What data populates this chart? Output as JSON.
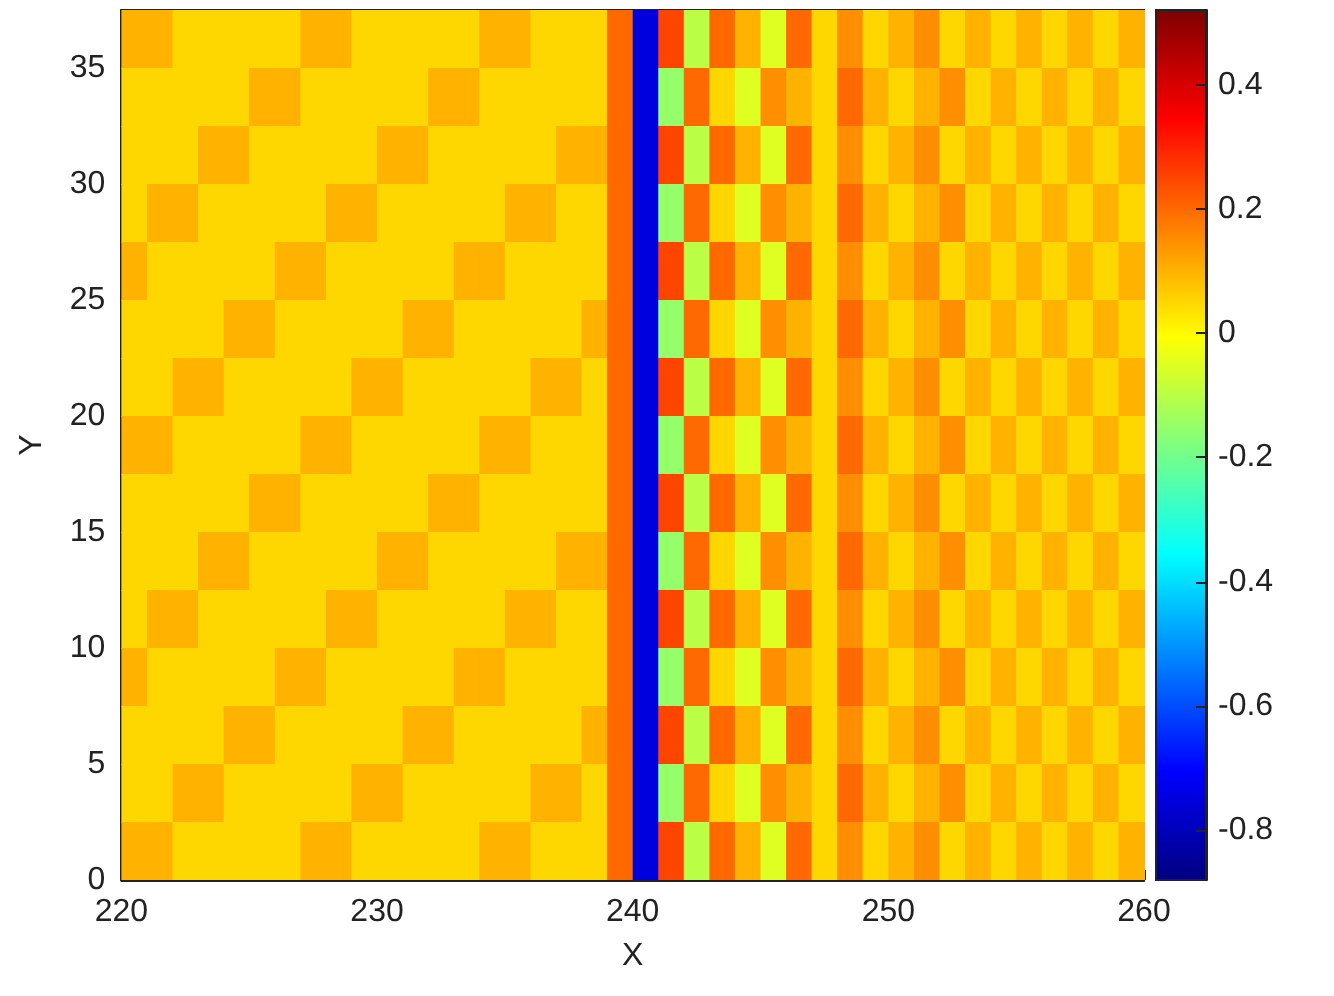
{
  "chart_data": {
    "type": "heatmap",
    "xlabel": "X",
    "ylabel": "Y",
    "x": [
      220.5,
      221.5,
      222.5,
      223.5,
      224.5,
      225.5,
      226.5,
      227.5,
      228.5,
      229.5,
      230.5,
      231.5,
      232.5,
      233.5,
      234.5,
      235.5,
      236.5,
      237.5,
      238.5,
      239.5,
      240.5,
      241.5,
      242.5,
      243.5,
      244.5,
      245.5,
      246.5,
      247.5,
      248.5,
      249.5,
      250.5,
      251.5,
      252.5,
      253.5,
      254.5,
      255.5,
      256.5,
      257.5,
      258.5,
      259.5
    ],
    "y": [
      36.25,
      33.75,
      31.25,
      28.75,
      26.25,
      23.75,
      21.25,
      18.75,
      16.25,
      13.75,
      11.25,
      8.75,
      6.25,
      3.75,
      1.25
    ],
    "cells": [
      [
        0.1,
        0.1,
        0.05,
        0.05,
        0.05,
        0.05,
        0.05,
        0.1,
        0.1,
        0.05,
        0.05,
        0.05,
        0.05,
        0.05,
        0.1,
        0.1,
        0.05,
        0.05,
        0.05,
        0.2,
        -0.75,
        0.25,
        -0.1,
        0.2,
        0.1,
        -0.05,
        0.2,
        0.05,
        0.15,
        0.05,
        0.1,
        0.15,
        0.05,
        0.1,
        0.05,
        0.1,
        0.05,
        0.1,
        0.05,
        0.1
      ],
      [
        0.05,
        0.05,
        0.05,
        0.05,
        0.05,
        0.1,
        0.1,
        0.05,
        0.05,
        0.05,
        0.05,
        0.05,
        0.1,
        0.1,
        0.05,
        0.05,
        0.05,
        0.05,
        0.05,
        0.2,
        -0.75,
        -0.15,
        0.2,
        0.05,
        -0.05,
        0.15,
        0.1,
        0.05,
        0.2,
        0.1,
        0.05,
        0.1,
        0.15,
        0.05,
        0.1,
        0.05,
        0.1,
        0.05,
        0.1,
        0.05
      ],
      [
        0.05,
        0.05,
        0.05,
        0.1,
        0.1,
        0.05,
        0.05,
        0.05,
        0.05,
        0.05,
        0.1,
        0.1,
        0.05,
        0.05,
        0.05,
        0.05,
        0.05,
        0.1,
        0.1,
        0.2,
        -0.75,
        0.25,
        -0.1,
        0.2,
        0.1,
        -0.05,
        0.2,
        0.05,
        0.15,
        0.05,
        0.1,
        0.15,
        0.05,
        0.1,
        0.05,
        0.1,
        0.05,
        0.1,
        0.05,
        0.1
      ],
      [
        0.05,
        0.1,
        0.1,
        0.05,
        0.05,
        0.05,
        0.05,
        0.05,
        0.1,
        0.1,
        0.05,
        0.05,
        0.05,
        0.05,
        0.05,
        0.1,
        0.1,
        0.05,
        0.05,
        0.2,
        -0.75,
        -0.15,
        0.2,
        0.05,
        -0.05,
        0.15,
        0.1,
        0.05,
        0.2,
        0.1,
        0.05,
        0.1,
        0.15,
        0.05,
        0.1,
        0.05,
        0.1,
        0.05,
        0.1,
        0.05
      ],
      [
        0.1,
        0.05,
        0.05,
        0.05,
        0.05,
        0.05,
        0.1,
        0.1,
        0.05,
        0.05,
        0.05,
        0.05,
        0.05,
        0.1,
        0.1,
        0.05,
        0.05,
        0.05,
        0.05,
        0.2,
        -0.75,
        0.25,
        -0.1,
        0.2,
        0.1,
        -0.05,
        0.2,
        0.05,
        0.15,
        0.05,
        0.1,
        0.15,
        0.05,
        0.1,
        0.05,
        0.1,
        0.05,
        0.1,
        0.05,
        0.1
      ],
      [
        0.05,
        0.05,
        0.05,
        0.05,
        0.1,
        0.1,
        0.05,
        0.05,
        0.05,
        0.05,
        0.05,
        0.1,
        0.1,
        0.05,
        0.05,
        0.05,
        0.05,
        0.05,
        0.1,
        0.2,
        -0.75,
        -0.15,
        0.2,
        0.05,
        -0.05,
        0.15,
        0.1,
        0.05,
        0.2,
        0.1,
        0.05,
        0.1,
        0.15,
        0.05,
        0.1,
        0.05,
        0.1,
        0.05,
        0.1,
        0.05
      ],
      [
        0.05,
        0.05,
        0.1,
        0.1,
        0.05,
        0.05,
        0.05,
        0.05,
        0.05,
        0.1,
        0.1,
        0.05,
        0.05,
        0.05,
        0.05,
        0.05,
        0.1,
        0.1,
        0.05,
        0.2,
        -0.75,
        0.25,
        -0.1,
        0.2,
        0.1,
        -0.05,
        0.2,
        0.05,
        0.15,
        0.05,
        0.1,
        0.15,
        0.05,
        0.1,
        0.05,
        0.1,
        0.05,
        0.1,
        0.05,
        0.1
      ],
      [
        0.1,
        0.1,
        0.05,
        0.05,
        0.05,
        0.05,
        0.05,
        0.1,
        0.1,
        0.05,
        0.05,
        0.05,
        0.05,
        0.05,
        0.1,
        0.1,
        0.05,
        0.05,
        0.05,
        0.2,
        -0.75,
        -0.15,
        0.2,
        0.05,
        -0.05,
        0.15,
        0.1,
        0.05,
        0.2,
        0.1,
        0.05,
        0.1,
        0.15,
        0.05,
        0.1,
        0.05,
        0.1,
        0.05,
        0.1,
        0.05
      ],
      [
        0.05,
        0.05,
        0.05,
        0.05,
        0.05,
        0.1,
        0.1,
        0.05,
        0.05,
        0.05,
        0.05,
        0.05,
        0.1,
        0.1,
        0.05,
        0.05,
        0.05,
        0.05,
        0.05,
        0.2,
        -0.75,
        0.25,
        -0.1,
        0.2,
        0.1,
        -0.05,
        0.2,
        0.05,
        0.15,
        0.05,
        0.1,
        0.15,
        0.05,
        0.1,
        0.05,
        0.1,
        0.05,
        0.1,
        0.05,
        0.1
      ],
      [
        0.05,
        0.05,
        0.05,
        0.1,
        0.1,
        0.05,
        0.05,
        0.05,
        0.05,
        0.05,
        0.1,
        0.1,
        0.05,
        0.05,
        0.05,
        0.05,
        0.05,
        0.1,
        0.1,
        0.2,
        -0.75,
        -0.15,
        0.2,
        0.05,
        -0.05,
        0.15,
        0.1,
        0.05,
        0.2,
        0.1,
        0.05,
        0.1,
        0.15,
        0.05,
        0.1,
        0.05,
        0.1,
        0.05,
        0.1,
        0.05
      ],
      [
        0.05,
        0.1,
        0.1,
        0.05,
        0.05,
        0.05,
        0.05,
        0.05,
        0.1,
        0.1,
        0.05,
        0.05,
        0.05,
        0.05,
        0.05,
        0.1,
        0.1,
        0.05,
        0.05,
        0.2,
        -0.75,
        0.25,
        -0.1,
        0.2,
        0.1,
        -0.05,
        0.2,
        0.05,
        0.15,
        0.05,
        0.1,
        0.15,
        0.05,
        0.1,
        0.05,
        0.1,
        0.05,
        0.1,
        0.05,
        0.1
      ],
      [
        0.1,
        0.05,
        0.05,
        0.05,
        0.05,
        0.05,
        0.1,
        0.1,
        0.05,
        0.05,
        0.05,
        0.05,
        0.05,
        0.1,
        0.1,
        0.05,
        0.05,
        0.05,
        0.05,
        0.2,
        -0.75,
        -0.15,
        0.2,
        0.05,
        -0.05,
        0.15,
        0.1,
        0.05,
        0.2,
        0.1,
        0.05,
        0.1,
        0.15,
        0.05,
        0.1,
        0.05,
        0.1,
        0.05,
        0.1,
        0.05
      ],
      [
        0.05,
        0.05,
        0.05,
        0.05,
        0.1,
        0.1,
        0.05,
        0.05,
        0.05,
        0.05,
        0.05,
        0.1,
        0.1,
        0.05,
        0.05,
        0.05,
        0.05,
        0.05,
        0.1,
        0.2,
        -0.75,
        0.25,
        -0.1,
        0.2,
        0.1,
        -0.05,
        0.2,
        0.05,
        0.15,
        0.05,
        0.1,
        0.15,
        0.05,
        0.1,
        0.05,
        0.1,
        0.05,
        0.1,
        0.05,
        0.1
      ],
      [
        0.05,
        0.05,
        0.1,
        0.1,
        0.05,
        0.05,
        0.05,
        0.05,
        0.05,
        0.1,
        0.1,
        0.05,
        0.05,
        0.05,
        0.05,
        0.05,
        0.1,
        0.1,
        0.05,
        0.2,
        -0.75,
        -0.15,
        0.2,
        0.05,
        -0.05,
        0.15,
        0.1,
        0.05,
        0.2,
        0.1,
        0.05,
        0.1,
        0.15,
        0.05,
        0.1,
        0.05,
        0.1,
        0.05,
        0.1,
        0.05
      ],
      [
        0.1,
        0.1,
        0.05,
        0.05,
        0.05,
        0.05,
        0.05,
        0.1,
        0.1,
        0.05,
        0.05,
        0.05,
        0.05,
        0.05,
        0.1,
        0.1,
        0.05,
        0.05,
        0.05,
        0.2,
        -0.75,
        0.25,
        -0.1,
        0.2,
        0.1,
        -0.05,
        0.2,
        0.05,
        0.15,
        0.05,
        0.1,
        0.15,
        0.05,
        0.1,
        0.05,
        0.1,
        0.05,
        0.1,
        0.05,
        0.1
      ]
    ],
    "xlim": [
      220,
      260
    ],
    "xticks": [
      220,
      230,
      240,
      250,
      260
    ],
    "ylim": [
      0,
      37.5
    ],
    "yticks": [
      0,
      5,
      10,
      15,
      20,
      25,
      30,
      35
    ],
    "clim": [
      -0.88,
      0.52
    ],
    "cticks": [
      -0.8,
      -0.6,
      -0.4,
      -0.2,
      0,
      0.2,
      0.4
    ]
  }
}
